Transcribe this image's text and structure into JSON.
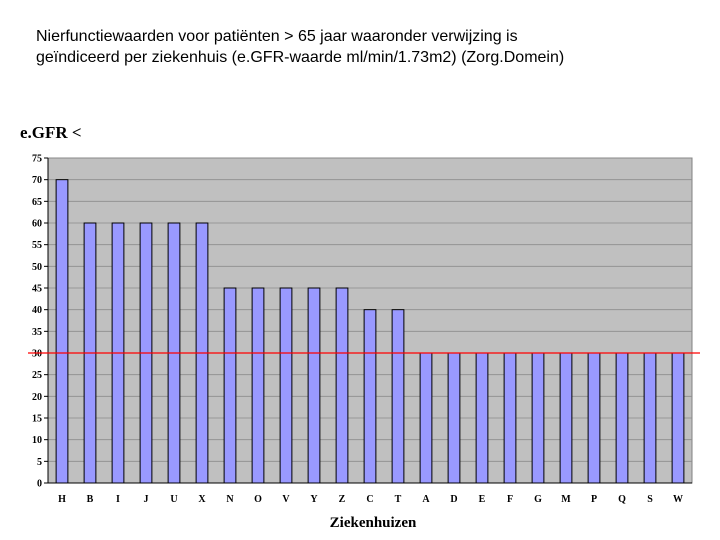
{
  "slide": {
    "title_line1": "Nierfunctiewaarden voor patiënten > 65 jaar waaronder verwijzing is",
    "title_line2": "geïndiceerd per ziekenhuis (e.GFR-waarde ml/min/1.73m2) (Zorg.Domein)"
  },
  "chart_data": {
    "type": "bar",
    "ylabel": "e.GFR <",
    "xlabel": "Ziekenhuizen",
    "categories": [
      "H",
      "B",
      "I",
      "J",
      "U",
      "X",
      "N",
      "O",
      "V",
      "Y",
      "Z",
      "C",
      "T",
      "A",
      "D",
      "E",
      "F",
      "G",
      "M",
      "P",
      "Q",
      "S",
      "W"
    ],
    "values": [
      70,
      60,
      60,
      60,
      60,
      60,
      45,
      45,
      45,
      45,
      45,
      40,
      40,
      30,
      30,
      30,
      30,
      30,
      30,
      30,
      30,
      30,
      30
    ],
    "ylim": [
      0,
      75
    ],
    "yticks": [
      0,
      5,
      10,
      15,
      20,
      25,
      30,
      35,
      40,
      45,
      50,
      55,
      60,
      65,
      70,
      75
    ],
    "grid": true,
    "reference_line": 30,
    "colors": {
      "plot_background": "#c0c0c0",
      "bar_fill": "#9999ff",
      "bar_stroke": "#000000",
      "reference_line": "#ff0000",
      "gridline": "#8c8c8c"
    }
  }
}
